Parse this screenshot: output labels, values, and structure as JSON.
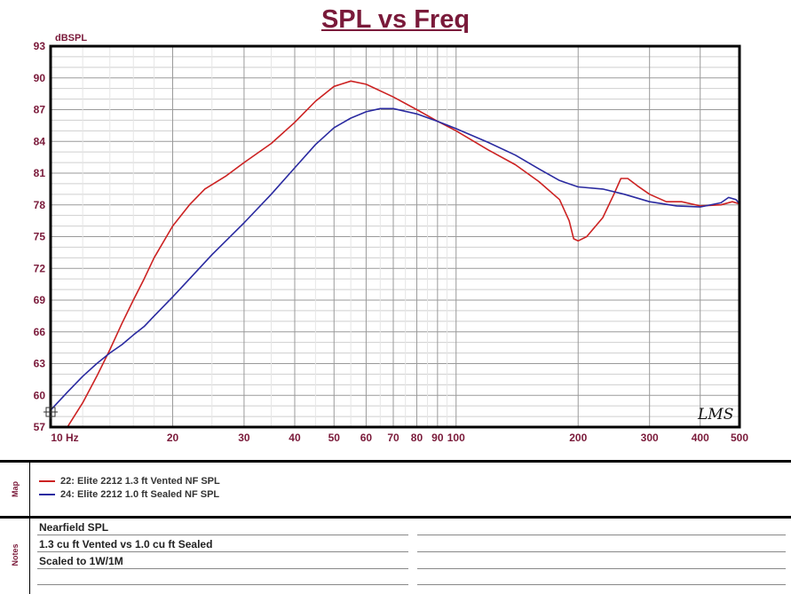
{
  "chart_data": {
    "type": "line",
    "title": "SPL vs Freq",
    "ylabel": "dBSPL",
    "xscale": "log",
    "xlim": [
      10,
      500
    ],
    "ylim": [
      57,
      93
    ],
    "yticks": [
      57,
      60,
      63,
      66,
      69,
      72,
      75,
      78,
      81,
      84,
      87,
      90,
      93
    ],
    "xticks": [
      {
        "value": 10,
        "label": "10 Hz"
      },
      {
        "value": 20,
        "label": "20"
      },
      {
        "value": 30,
        "label": "30"
      },
      {
        "value": 40,
        "label": "40"
      },
      {
        "value": 50,
        "label": "50"
      },
      {
        "value": 60,
        "label": "60"
      },
      {
        "value": 70,
        "label": "70"
      },
      {
        "value": 80,
        "label": "80"
      },
      {
        "value": 90,
        "label": "90"
      },
      {
        "value": 100,
        "label": "100"
      },
      {
        "value": 200,
        "label": "200"
      },
      {
        "value": 300,
        "label": "300"
      },
      {
        "value": 400,
        "label": "400"
      },
      {
        "value": 500,
        "label": "500"
      }
    ],
    "grid": true,
    "watermark": "LMS",
    "series": [
      {
        "name": "22: Elite 2212 1.3 ft Vented NF SPL",
        "color": "#cc2222",
        "points": [
          [
            11,
            57
          ],
          [
            12,
            59.3
          ],
          [
            13,
            61.8
          ],
          [
            14,
            64.3
          ],
          [
            15,
            66.8
          ],
          [
            16,
            69
          ],
          [
            17,
            71
          ],
          [
            18,
            73
          ],
          [
            20,
            76
          ],
          [
            22,
            78
          ],
          [
            24,
            79.5
          ],
          [
            27,
            80.7
          ],
          [
            30,
            82
          ],
          [
            35,
            83.8
          ],
          [
            40,
            85.8
          ],
          [
            45,
            87.8
          ],
          [
            50,
            89.2
          ],
          [
            55,
            89.7
          ],
          [
            60,
            89.4
          ],
          [
            70,
            88.2
          ],
          [
            80,
            87
          ],
          [
            90,
            85.9
          ],
          [
            100,
            85
          ],
          [
            120,
            83.2
          ],
          [
            140,
            81.8
          ],
          [
            160,
            80.2
          ],
          [
            180,
            78.5
          ],
          [
            190,
            76.5
          ],
          [
            195,
            74.8
          ],
          [
            200,
            74.6
          ],
          [
            210,
            75
          ],
          [
            230,
            76.8
          ],
          [
            245,
            79
          ],
          [
            255,
            80.5
          ],
          [
            265,
            80.5
          ],
          [
            280,
            79.8
          ],
          [
            300,
            79
          ],
          [
            330,
            78.3
          ],
          [
            360,
            78.3
          ],
          [
            400,
            77.9
          ],
          [
            450,
            78
          ],
          [
            480,
            78.3
          ],
          [
            500,
            78.1
          ]
        ]
      },
      {
        "name": "24: Elite 2212 1.0 ft Sealed NF SPL",
        "color": "#2a2aa0",
        "points": [
          [
            10,
            58.6
          ],
          [
            11,
            60.3
          ],
          [
            12,
            61.8
          ],
          [
            13,
            63
          ],
          [
            14,
            64
          ],
          [
            15,
            64.8
          ],
          [
            16,
            65.7
          ],
          [
            17,
            66.5
          ],
          [
            18,
            67.5
          ],
          [
            20,
            69.3
          ],
          [
            22,
            71
          ],
          [
            25,
            73.3
          ],
          [
            30,
            76.3
          ],
          [
            35,
            79
          ],
          [
            40,
            81.5
          ],
          [
            45,
            83.7
          ],
          [
            50,
            85.3
          ],
          [
            55,
            86.2
          ],
          [
            60,
            86.8
          ],
          [
            65,
            87.1
          ],
          [
            70,
            87.1
          ],
          [
            80,
            86.6
          ],
          [
            90,
            85.9
          ],
          [
            100,
            85.2
          ],
          [
            120,
            83.9
          ],
          [
            140,
            82.7
          ],
          [
            160,
            81.4
          ],
          [
            180,
            80.3
          ],
          [
            200,
            79.7
          ],
          [
            230,
            79.5
          ],
          [
            260,
            79
          ],
          [
            300,
            78.3
          ],
          [
            350,
            77.9
          ],
          [
            400,
            77.8
          ],
          [
            450,
            78.2
          ],
          [
            470,
            78.7
          ],
          [
            490,
            78.5
          ],
          [
            500,
            78.1
          ]
        ]
      }
    ]
  },
  "map_panel": {
    "side_label": "Map"
  },
  "notes_panel": {
    "side_label": "Notes",
    "lines": [
      "Nearfield SPL",
      "1.3 cu ft Vented vs 1.0 cu ft Sealed",
      "Scaled to 1W/1M"
    ]
  }
}
